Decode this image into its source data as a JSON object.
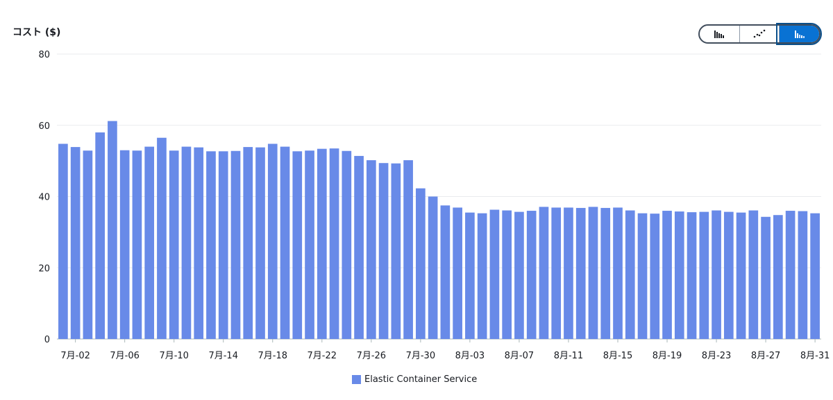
{
  "chart_data": {
    "type": "bar",
    "ylabel": "コスト ($)",
    "ylim": [
      0,
      80
    ],
    "yticks": [
      "0",
      "20",
      "40",
      "60",
      "80"
    ],
    "grid": true,
    "legend_position": "bottom-center",
    "color": "#688ae8",
    "categories": [
      "7月-01",
      "7月-02",
      "7月-03",
      "7月-04",
      "7月-05",
      "7月-06",
      "7月-07",
      "7月-08",
      "7月-09",
      "7月-10",
      "7月-11",
      "7月-12",
      "7月-13",
      "7月-14",
      "7月-15",
      "7月-16",
      "7月-17",
      "7月-18",
      "7月-19",
      "7月-20",
      "7月-21",
      "7月-22",
      "7月-23",
      "7月-24",
      "7月-25",
      "7月-26",
      "7月-27",
      "7月-28",
      "7月-29",
      "7月-30",
      "7月-31",
      "8月-01",
      "8月-02",
      "8月-03",
      "8月-04",
      "8月-05",
      "8月-06",
      "8月-07",
      "8月-08",
      "8月-09",
      "8月-10",
      "8月-11",
      "8月-12",
      "8月-13",
      "8月-14",
      "8月-15",
      "8月-16",
      "8月-17",
      "8月-18",
      "8月-19",
      "8月-20",
      "8月-21",
      "8月-22",
      "8月-23",
      "8月-24",
      "8月-25",
      "8月-26",
      "8月-27",
      "8月-28",
      "8月-29",
      "8月-30",
      "8月-31"
    ],
    "xtick_labels": [
      "7月-02",
      "7月-06",
      "7月-10",
      "7月-14",
      "7月-18",
      "7月-22",
      "7月-26",
      "7月-30",
      "8月-03",
      "8月-07",
      "8月-11",
      "8月-15",
      "8月-19",
      "8月-23",
      "8月-27",
      "8月-31"
    ],
    "series": [
      {
        "name": "Elastic Container Service",
        "values": [
          54.8,
          53.9,
          52.9,
          58.0,
          61.2,
          53.0,
          52.9,
          54.0,
          56.5,
          52.9,
          54.0,
          53.8,
          52.7,
          52.7,
          52.8,
          53.9,
          53.8,
          54.8,
          54.0,
          52.7,
          52.9,
          53.4,
          53.5,
          52.8,
          51.4,
          50.2,
          49.4,
          49.3,
          50.2,
          42.3,
          40.0,
          37.5,
          36.9,
          35.5,
          35.3,
          36.3,
          36.1,
          35.7,
          36.0,
          37.1,
          36.9,
          36.9,
          36.8,
          37.1,
          36.8,
          36.9,
          36.1,
          35.3,
          35.2,
          36.0,
          35.8,
          35.6,
          35.7,
          36.1,
          35.7,
          35.5,
          36.1,
          34.3,
          34.8,
          36.0,
          35.9,
          35.3
        ]
      }
    ]
  },
  "toggle": {
    "icons": [
      "grouped-bar-chart-icon",
      "line-chart-icon",
      "stacked-bar-chart-icon"
    ],
    "active": 2
  }
}
